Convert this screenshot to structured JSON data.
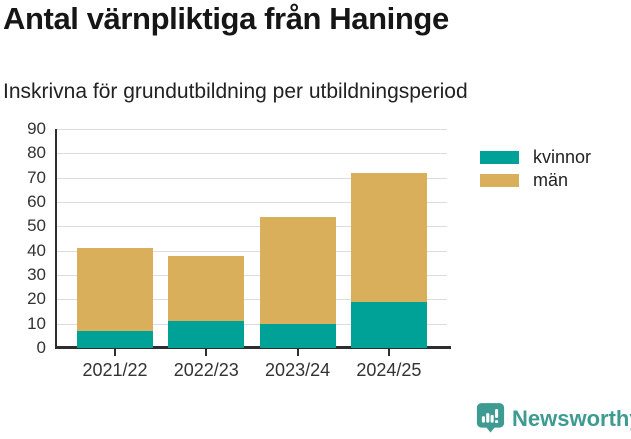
{
  "title": "Antal värnpliktiga från Haninge",
  "subtitle": "Inskrivna för grundutbildning per utbildningsperiod",
  "chart_data": {
    "type": "bar",
    "stacked": true,
    "title": "Antal värnpliktiga från Haninge",
    "subtitle": "Inskrivna för grundutbildning per utbildningsperiod",
    "categories": [
      "2021/22",
      "2022/23",
      "2023/24",
      "2024/25"
    ],
    "series": [
      {
        "name": "kvinnor",
        "color": "#00a197",
        "values": [
          7,
          11,
          10,
          19
        ]
      },
      {
        "name": "män",
        "color": "#d9af5b",
        "values": [
          34,
          27,
          44,
          53
        ]
      }
    ],
    "stacked_totals": [
      41,
      38,
      54,
      72
    ],
    "xlabel": "",
    "ylabel": "",
    "ylim": [
      0,
      90
    ],
    "ytick_step": 10,
    "grid": true,
    "legend_position": "right"
  },
  "legend": {
    "items": [
      {
        "label": "kvinnor",
        "color": "#00a197"
      },
      {
        "label": "män",
        "color": "#d9af5b"
      }
    ]
  },
  "footer": {
    "brand": "Newsworthy"
  },
  "colors": {
    "kvinnor": "#00a197",
    "man": "#d9af5b",
    "axis": "#2e2e2e",
    "grid": "#dcdcdc",
    "brand": "#3e9b91"
  }
}
